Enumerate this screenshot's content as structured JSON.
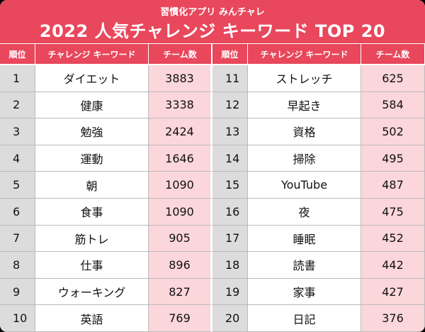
{
  "header": {
    "subtitle": "習慣化アプリ みんチャレ",
    "title": "2022 人気チャレンジ キーワード TOP 20"
  },
  "table": {
    "columns": [
      "順位",
      "チャレンジ キーワード",
      "チーム数",
      "順位",
      "チャレンジ キーワード",
      "チーム数"
    ],
    "rows": [
      [
        1,
        "ダイエット",
        3883,
        11,
        "ストレッチ",
        625
      ],
      [
        2,
        "健康",
        3338,
        12,
        "早起き",
        584
      ],
      [
        3,
        "勉強",
        2424,
        13,
        "資格",
        502
      ],
      [
        4,
        "運動",
        1646,
        14,
        "掃除",
        495
      ],
      [
        5,
        "朝",
        1090,
        15,
        "YouTube",
        487
      ],
      [
        6,
        "食事",
        1090,
        16,
        "夜",
        475
      ],
      [
        7,
        "筋トレ",
        905,
        17,
        "睡眠",
        452
      ],
      [
        8,
        "仕事",
        896,
        18,
        "読書",
        442
      ],
      [
        9,
        "ウォーキング",
        827,
        19,
        "家事",
        427
      ],
      [
        10,
        "英語",
        769,
        20,
        "日記",
        376
      ]
    ]
  }
}
